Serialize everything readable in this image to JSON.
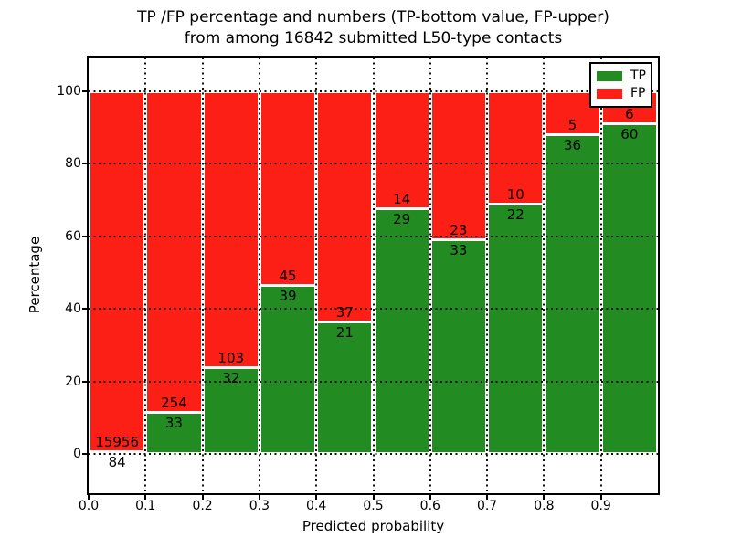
{
  "title": {
    "line1": "TP /FP percentage and numbers (TP-bottom value, FP-upper)",
    "line2": "from among 16842 submitted L50-type contacts"
  },
  "axes": {
    "xlabel": "Predicted probability",
    "ylabel": "Percentage",
    "x_tick_labels": [
      "0.0",
      "0.1",
      "0.2",
      "0.3",
      "0.4",
      "0.5",
      "0.6",
      "0.7",
      "0.8",
      "0.9"
    ],
    "y_tick_labels": [
      "0",
      "20",
      "40",
      "60",
      "80",
      "100"
    ],
    "y_tick_values": [
      0,
      20,
      40,
      60,
      80,
      100
    ],
    "x_range": [
      0.0,
      1.0
    ],
    "y_range_shown": [
      -11,
      109
    ],
    "grid": "dotted, drawn above bars"
  },
  "legend": {
    "position": "upper right",
    "entries": [
      {
        "label": "TP",
        "color": "#228b22"
      },
      {
        "label": "FP",
        "color": "#fb1f16"
      }
    ]
  },
  "colors": {
    "tp_green": "#228b22",
    "fp_red": "#fb1f16",
    "grid": "#111111",
    "frame": "#000000",
    "background": "#ffffff"
  },
  "chart_data": {
    "type": "bar",
    "subtype": "stacked-percentage-histogram",
    "title": "TP /FP percentage and numbers (TP-bottom value, FP-upper) from among 16842 submitted L50-type contacts",
    "xlabel": "Predicted probability",
    "ylabel": "Percentage",
    "total_contacts": 16842,
    "bin_edges": [
      0.0,
      0.1,
      0.2,
      0.3,
      0.4,
      0.5,
      0.6,
      0.7,
      0.8,
      0.9,
      1.0
    ],
    "categories": [
      "0.0-0.1",
      "0.1-0.2",
      "0.2-0.3",
      "0.3-0.4",
      "0.4-0.5",
      "0.5-0.6",
      "0.6-0.7",
      "0.7-0.8",
      "0.8-0.9",
      "0.9-1.0"
    ],
    "series": [
      {
        "name": "TP",
        "color": "#228b22",
        "counts": [
          84,
          33,
          32,
          39,
          21,
          29,
          33,
          22,
          36,
          60
        ]
      },
      {
        "name": "FP",
        "color": "#fb1f16",
        "counts": [
          15956,
          254,
          103,
          45,
          37,
          14,
          23,
          10,
          5,
          6
        ]
      }
    ],
    "tp_percent_approx": [
      0.5,
      11.5,
      23.7,
      46.4,
      36.2,
      67.4,
      58.9,
      68.8,
      87.8,
      90.9
    ],
    "bars_sum_to": 100,
    "ylim": [
      -11,
      109
    ],
    "legend_position": "upper right"
  }
}
